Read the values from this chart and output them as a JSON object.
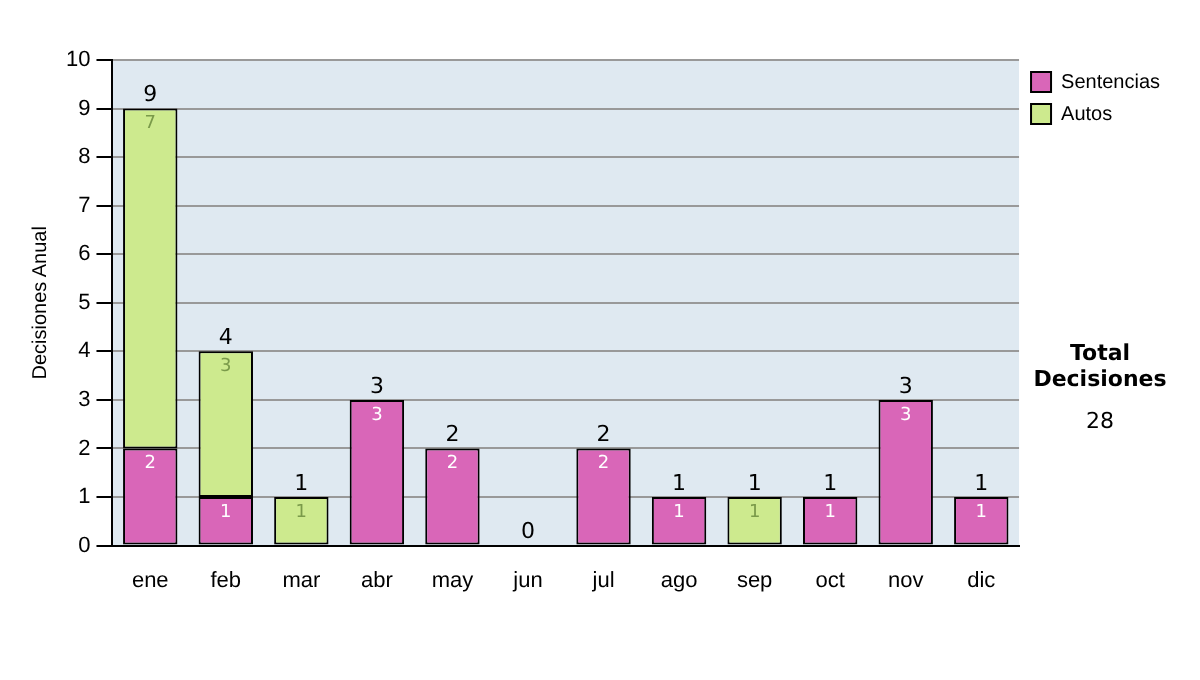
{
  "chart_data": {
    "type": "bar",
    "stacked": true,
    "ylabel": "Decisiones Anual",
    "categories": [
      "ene",
      "feb",
      "mar",
      "abr",
      "may",
      "jun",
      "jul",
      "ago",
      "sep",
      "oct",
      "nov",
      "dic"
    ],
    "series": [
      {
        "name": "Sentencias",
        "color": "#d966b8",
        "values": [
          2,
          1,
          0,
          3,
          2,
          0,
          2,
          1,
          0,
          1,
          3,
          1
        ],
        "value_labels": [
          "2",
          "1",
          null,
          "3",
          "2",
          null,
          "2",
          "1",
          null,
          "1",
          "3",
          "1"
        ]
      },
      {
        "name": "Autos",
        "color": "#cdea8e",
        "values": [
          7,
          3,
          1,
          0,
          0,
          0,
          0,
          0,
          1,
          0,
          0,
          0
        ],
        "value_labels": [
          "7",
          "3",
          "1",
          null,
          null,
          null,
          null,
          null,
          "1",
          null,
          null,
          null
        ]
      }
    ],
    "totals": [
      "9",
      "4",
      "1",
      "3",
      "2",
      "0",
      "2",
      "1",
      "1",
      "1",
      "3",
      "1"
    ],
    "ylim": [
      0,
      10
    ],
    "yticks": [
      0,
      1,
      2,
      3,
      4,
      5,
      6,
      7,
      8,
      9,
      10
    ],
    "grid": "y",
    "legend": "right",
    "annotations": [
      "Total Decisiones",
      "28"
    ]
  }
}
